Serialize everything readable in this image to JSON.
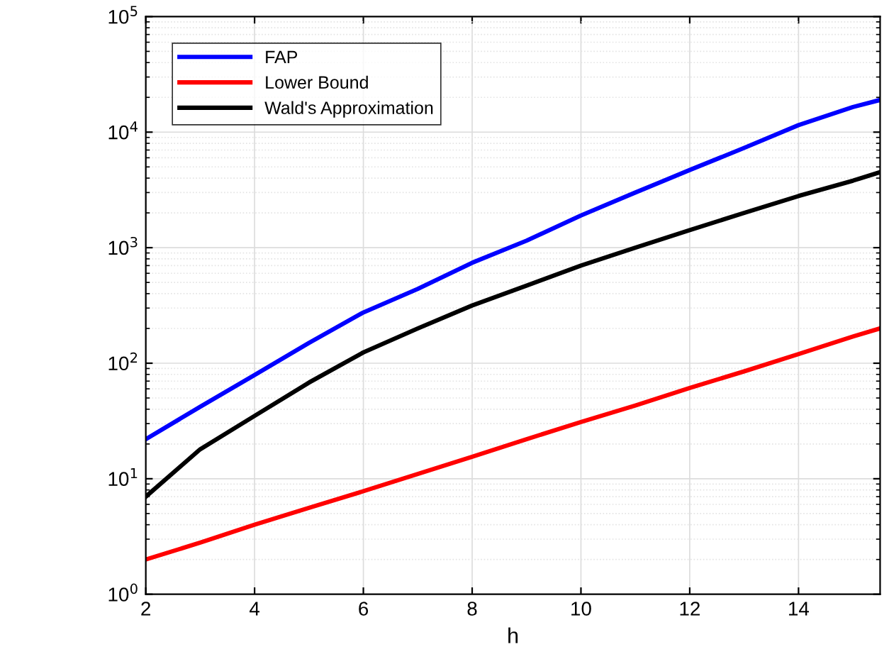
{
  "chart_data": {
    "type": "line",
    "xlabel": "h",
    "log": "y",
    "grid": true,
    "legend": "top left",
    "xlim": [
      2,
      15.5
    ],
    "xticks": [
      2,
      4,
      6,
      8,
      10,
      12,
      14
    ],
    "ylim": [
      1,
      100000
    ],
    "yticks": [
      {
        "value": 1,
        "label": "10$^{0}$"
      },
      {
        "value": 10,
        "label": "10$^{1}$"
      },
      {
        "value": 100,
        "label": "10$^{2}$"
      },
      {
        "value": 1000,
        "label": "10$^{3}$"
      },
      {
        "value": 10000,
        "label": "10$^{4}$"
      },
      {
        "value": 100000,
        "label": "10$^{5}$"
      }
    ],
    "x": [
      2,
      3,
      4,
      5,
      6,
      7,
      8,
      9,
      10,
      11,
      12,
      13,
      14,
      15,
      15.5
    ],
    "series": [
      {
        "name": "FAP",
        "color": "#0000ff",
        "values": [
          22,
          42,
          79,
          150,
          275,
          440,
          740,
          1150,
          1900,
          3000,
          4700,
          7300,
          11500,
          16500,
          19000
        ]
      },
      {
        "name": "Lower Bound",
        "color": "#ff0000",
        "values": [
          2,
          2.8,
          4,
          5.6,
          7.8,
          11,
          15.5,
          22,
          31,
          43,
          61,
          85,
          120,
          170,
          200
        ]
      },
      {
        "name": "Wald's Approximation",
        "color": "#000000",
        "values": [
          7,
          18,
          35,
          68,
          124,
          200,
          316,
          470,
          700,
          1000,
          1420,
          2000,
          2800,
          3800,
          4500
        ]
      }
    ]
  }
}
